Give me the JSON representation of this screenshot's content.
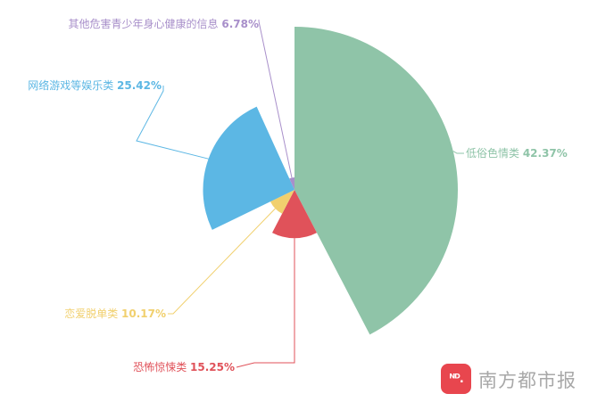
{
  "chart_data": {
    "type": "pie",
    "variant": "rose",
    "title": "",
    "slices": [
      {
        "label": "低俗色情类",
        "value": 42.37,
        "value_text": "42.37%",
        "color": "#8fc4a8"
      },
      {
        "label": "恐怖惊悚类",
        "value": 15.25,
        "value_text": "15.25%",
        "color": "#e0525a"
      },
      {
        "label": "恋爱脱单类",
        "value": 10.17,
        "value_text": "10.17%",
        "color": "#f1d06e"
      },
      {
        "label": "网络游戏等娱乐类",
        "value": 25.42,
        "value_text": "25.42%",
        "color": "#5cb7e4"
      },
      {
        "label": "其他危害青少年身心健康的信息",
        "value": 6.78,
        "value_text": "6.78%",
        "color": "#a88fca"
      }
    ]
  },
  "watermark": {
    "logo_text": "ᴺᴰ.",
    "text": "南方都市报"
  }
}
